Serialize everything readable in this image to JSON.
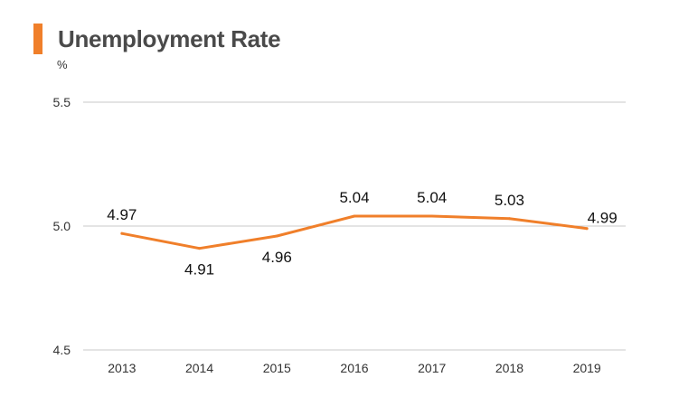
{
  "header": {
    "title": "Unemployment Rate",
    "unit": "%",
    "accent_color": "#f07f2a"
  },
  "chart_data": {
    "type": "line",
    "title": "Unemployment Rate",
    "xlabel": "",
    "ylabel": "%",
    "categories": [
      "2013",
      "2014",
      "2015",
      "2016",
      "2017",
      "2018",
      "2019"
    ],
    "series": [
      {
        "name": "Unemployment Rate",
        "values": [
          4.97,
          4.91,
          4.96,
          5.04,
          5.04,
          5.03,
          4.99
        ],
        "color": "#f07f2a"
      }
    ],
    "data_labels": [
      "4.97",
      "4.91",
      "4.96",
      "5.04",
      "5.04",
      "5.03",
      "4.99"
    ],
    "yticks": [
      "4.5",
      "5.0",
      "5.5"
    ],
    "ylim": [
      4.5,
      5.5
    ],
    "grid": true,
    "gridline_color": "#c8c8c8"
  }
}
